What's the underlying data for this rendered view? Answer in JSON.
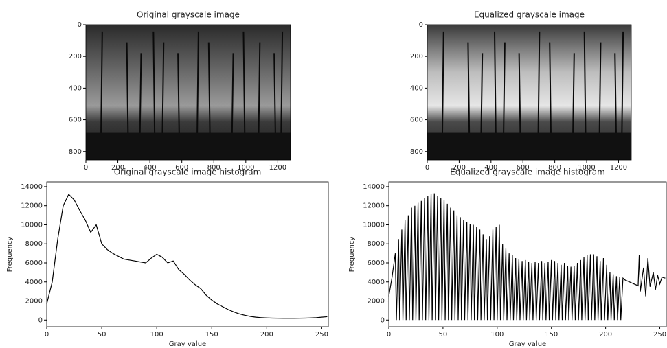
{
  "chart_data": [
    {
      "type": "image",
      "title": "Original grayscale image",
      "xlim": [
        0,
        1280
      ],
      "ylim": [
        853,
        0
      ],
      "xticks": [
        0,
        200,
        400,
        600,
        800,
        1000,
        1200
      ],
      "yticks": [
        0,
        200,
        400,
        600,
        800
      ]
    },
    {
      "type": "image",
      "title": "Equalized grayscale image",
      "xlim": [
        0,
        1280
      ],
      "ylim": [
        853,
        0
      ],
      "xticks": [
        0,
        200,
        400,
        600,
        800,
        1000,
        1200
      ],
      "yticks": [
        0,
        200,
        400,
        600,
        800
      ]
    },
    {
      "type": "line",
      "title": "Original grayscale image histogram",
      "xlabel": "Gray value",
      "ylabel": "Frequency",
      "color": "#000000",
      "xlim": [
        0,
        256
      ],
      "ylim": [
        -700,
        14500
      ],
      "xticks": [
        0,
        50,
        100,
        150,
        200,
        250
      ],
      "yticks": [
        0,
        2000,
        4000,
        6000,
        8000,
        10000,
        12000,
        14000
      ],
      "x": [
        0,
        5,
        10,
        15,
        20,
        25,
        30,
        35,
        40,
        45,
        50,
        55,
        60,
        65,
        70,
        75,
        80,
        85,
        90,
        95,
        100,
        105,
        110,
        115,
        120,
        125,
        130,
        135,
        140,
        145,
        150,
        155,
        160,
        165,
        170,
        175,
        180,
        185,
        190,
        195,
        200,
        205,
        210,
        215,
        220,
        225,
        230,
        235,
        240,
        245,
        250,
        255
      ],
      "values": [
        1700,
        4000,
        8500,
        12000,
        13200,
        12600,
        11500,
        10500,
        9200,
        10000,
        8000,
        7400,
        7000,
        6700,
        6400,
        6300,
        6200,
        6100,
        6000,
        6500,
        6900,
        6600,
        6000,
        6200,
        5300,
        4800,
        4200,
        3700,
        3300,
        2600,
        2100,
        1700,
        1400,
        1100,
        850,
        650,
        500,
        380,
        300,
        250,
        220,
        200,
        190,
        180,
        180,
        180,
        190,
        200,
        220,
        250,
        300,
        350
      ]
    },
    {
      "type": "line",
      "title": "Equalized grayscale image histogram",
      "xlabel": "Gray value",
      "ylabel": "Frequency",
      "color": "#000000",
      "xlim": [
        0,
        256
      ],
      "ylim": [
        -700,
        14500
      ],
      "xticks": [
        0,
        50,
        100,
        150,
        200,
        250
      ],
      "yticks": [
        0,
        2000,
        4000,
        6000,
        8000,
        10000,
        12000,
        14000
      ],
      "x": [
        0,
        3,
        6,
        7,
        9,
        10,
        12,
        13,
        15,
        16,
        18,
        19,
        21,
        22,
        24,
        25,
        27,
        28,
        30,
        31,
        33,
        34,
        36,
        37,
        39,
        40,
        42,
        43,
        45,
        46,
        48,
        49,
        51,
        52,
        54,
        55,
        57,
        58,
        60,
        61,
        63,
        64,
        66,
        67,
        69,
        70,
        72,
        73,
        75,
        76,
        78,
        79,
        81,
        82,
        84,
        85,
        87,
        88,
        90,
        91,
        93,
        94,
        96,
        97,
        99,
        100,
        102,
        103,
        105,
        106,
        108,
        109,
        111,
        112,
        114,
        115,
        117,
        118,
        120,
        121,
        123,
        124,
        126,
        127,
        129,
        130,
        132,
        133,
        135,
        136,
        138,
        139,
        141,
        142,
        144,
        145,
        147,
        148,
        150,
        151,
        153,
        154,
        156,
        157,
        159,
        160,
        162,
        163,
        165,
        166,
        168,
        169,
        171,
        172,
        174,
        175,
        177,
        178,
        180,
        181,
        183,
        184,
        186,
        187,
        189,
        190,
        192,
        193,
        195,
        196,
        198,
        199,
        201,
        202,
        204,
        205,
        207,
        208,
        210,
        211,
        213,
        214,
        216,
        218,
        222,
        226,
        230,
        231,
        232,
        235,
        237,
        239,
        241,
        244,
        246,
        248,
        250,
        252,
        255
      ],
      "values": [
        2500,
        4500,
        7000,
        0,
        8500,
        0,
        9500,
        0,
        10500,
        0,
        11000,
        0,
        11800,
        0,
        12000,
        0,
        12300,
        0,
        12500,
        0,
        12800,
        0,
        13000,
        0,
        13200,
        0,
        13300,
        0,
        13000,
        0,
        12800,
        0,
        12600,
        0,
        12200,
        0,
        11800,
        0,
        11500,
        0,
        11000,
        0,
        10800,
        0,
        10500,
        0,
        10300,
        0,
        10100,
        0,
        10000,
        0,
        9800,
        0,
        9500,
        0,
        9000,
        0,
        8500,
        0,
        8800,
        0,
        9500,
        0,
        9800,
        0,
        10000,
        0,
        8000,
        0,
        7500,
        0,
        7000,
        0,
        6800,
        0,
        6500,
        0,
        6400,
        0,
        6200,
        0,
        6300,
        0,
        6100,
        0,
        6000,
        0,
        6100,
        0,
        6000,
        0,
        6200,
        0,
        6000,
        0,
        6100,
        0,
        6300,
        0,
        6200,
        0,
        6000,
        0,
        5800,
        0,
        6000,
        0,
        5700,
        0,
        5600,
        0,
        5700,
        0,
        6000,
        0,
        6300,
        0,
        6600,
        0,
        6800,
        0,
        6900,
        0,
        6900,
        0,
        6700,
        0,
        6200,
        0,
        6500,
        0,
        5800,
        0,
        5000,
        0,
        4800,
        0,
        4600,
        0,
        4500,
        0,
        4400,
        4200,
        4000,
        3800,
        3600,
        6800,
        3000,
        5500,
        2500,
        6500,
        3500,
        5000,
        3200,
        4700,
        3800,
        4500,
        4400
      ]
    }
  ]
}
